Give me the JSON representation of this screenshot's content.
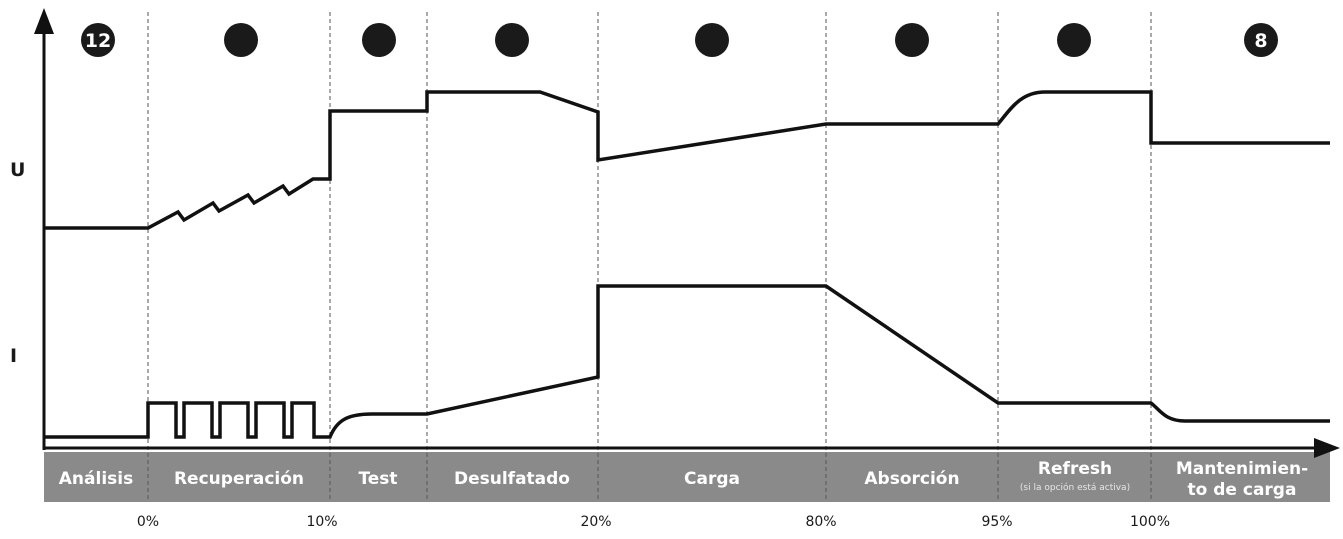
{
  "axes": {
    "voltage_label": "U",
    "current_label": "I"
  },
  "steps": [
    {
      "badge": "12"
    },
    {
      "badge": ""
    },
    {
      "badge": ""
    },
    {
      "badge": ""
    },
    {
      "badge": ""
    },
    {
      "badge": ""
    },
    {
      "badge": ""
    },
    {
      "badge": "8"
    }
  ],
  "stages": [
    {
      "label": "Análisis"
    },
    {
      "label": "Recuperación"
    },
    {
      "label": "Test"
    },
    {
      "label": "Desulfatado"
    },
    {
      "label": "Carga"
    },
    {
      "label": "Absorción"
    },
    {
      "label": "Refresh",
      "sublabel": "(si la opción está activa)"
    },
    {
      "label_line1": "Mantenimien-",
      "label_line2": "to de carga"
    }
  ],
  "percent_marks": [
    "0%",
    "10%",
    "20%",
    "80%",
    "95%",
    "100%"
  ],
  "colors": {
    "line": "#111111",
    "band": "#8a8a8a",
    "badge": "#1a1a1a",
    "guide": "#555555"
  }
}
